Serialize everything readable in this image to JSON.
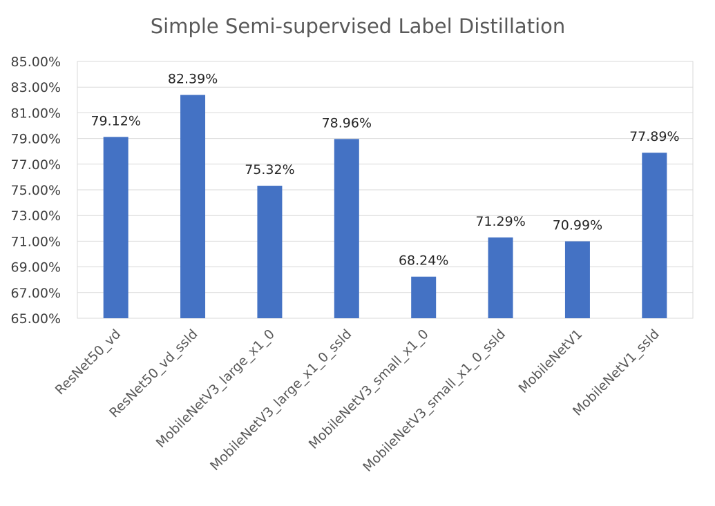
{
  "chart_data": {
    "type": "bar",
    "title": "Simple Semi-supervised Label Distillation",
    "xlabel": "",
    "ylabel": "",
    "ylim": [
      65,
      85
    ],
    "y_ticks": [
      "65.00%",
      "67.00%",
      "69.00%",
      "71.00%",
      "73.00%",
      "75.00%",
      "77.00%",
      "79.00%",
      "81.00%",
      "83.00%",
      "85.00%"
    ],
    "categories": [
      "ResNet50_vd",
      "ResNet50_vd_ssld",
      "MobileNetV3_large_x1_0",
      "MobileNetV3_large_x1_0_ssld",
      "MobileNetV3_small_x1_0",
      "MobileNetV3_small_x1_0_ssld",
      "MobileNetV1",
      "MobileNetV1_ssld"
    ],
    "values": [
      79.12,
      82.39,
      75.32,
      78.96,
      68.24,
      71.29,
      70.99,
      77.89
    ],
    "data_labels": [
      "79.12%",
      "82.39%",
      "75.32%",
      "78.96%",
      "68.24%",
      "71.29%",
      "70.99%",
      "77.89%"
    ],
    "bar_color": "#4472c4",
    "grid": true,
    "legend": "none"
  }
}
